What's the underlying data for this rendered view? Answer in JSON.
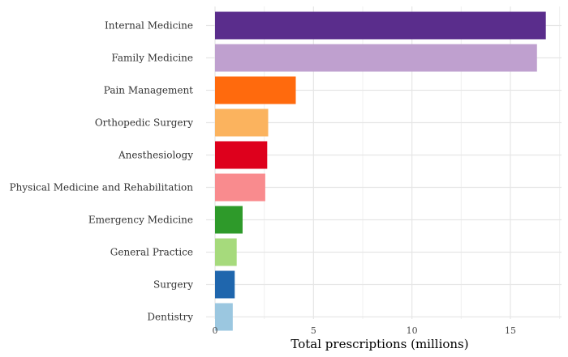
{
  "chart_data": {
    "type": "bar",
    "orientation": "horizontal",
    "title": "",
    "xlabel": "Total prescriptions (millions)",
    "ylabel": "",
    "xlim": [
      0,
      17.5
    ],
    "x_ticks": [
      0,
      5,
      10,
      15
    ],
    "grid": true,
    "legend": "none",
    "categories": [
      "Internal Medicine",
      "Family Medicine",
      "Pain Management",
      "Orthopedic Surgery",
      "Anesthesiology",
      "Physical Medicine and Rehabilitation",
      "Emergency Medicine",
      "General Practice",
      "Surgery",
      "Dentistry"
    ],
    "values": [
      16.8,
      16.35,
      4.1,
      2.7,
      2.65,
      2.55,
      1.4,
      1.1,
      1.0,
      0.9
    ],
    "colors": [
      "#5a2d8c",
      "#bfa0cf",
      "#ff6a0d",
      "#fbb35e",
      "#de001c",
      "#f98b8e",
      "#2e9a2a",
      "#a6da7c",
      "#1f66ad",
      "#9bc7e0"
    ]
  }
}
